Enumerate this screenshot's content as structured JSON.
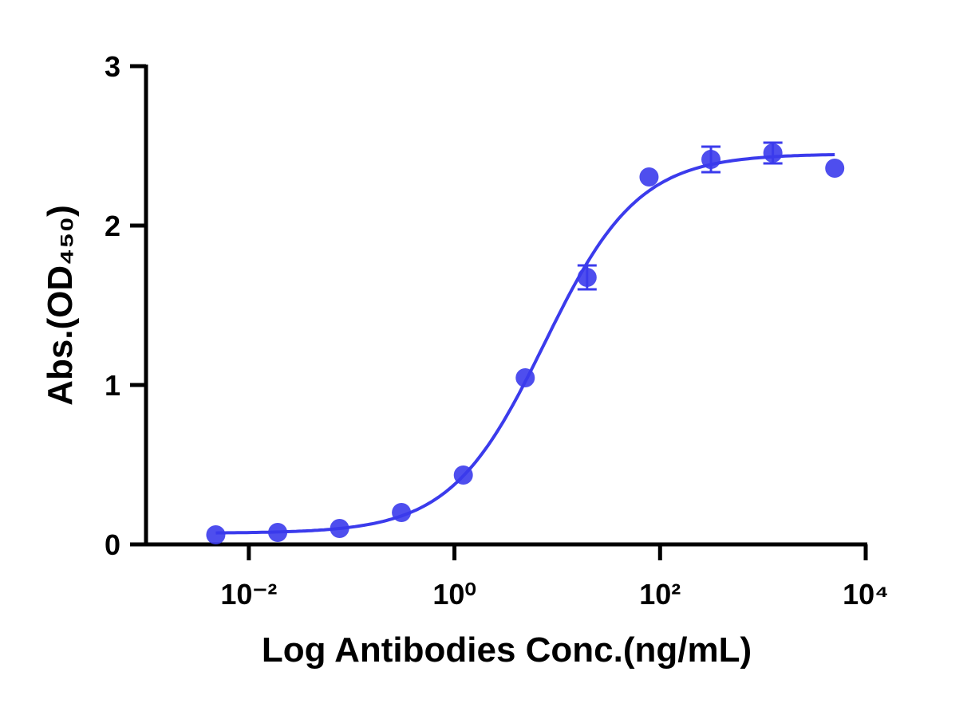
{
  "chart_data": {
    "type": "scatter",
    "x_label": "Log Antibodies Conc.(ng/mL)",
    "y_label": "Abs.(OD₄₅₀)",
    "x_scale": "log",
    "xlim": [
      0.001,
      10000
    ],
    "xticks": [
      {
        "value": 0.01,
        "label": "10⁻²"
      },
      {
        "value": 1,
        "label": "10⁰"
      },
      {
        "value": 100,
        "label": "10²"
      },
      {
        "value": 10000,
        "label": "10⁴"
      }
    ],
    "ylim": [
      0,
      3
    ],
    "yticks": [
      0,
      1,
      2,
      3
    ],
    "color": "#3b3bec",
    "x": [
      0.00477,
      0.0191,
      0.0763,
      0.305,
      1.22,
      4.88,
      19.5,
      78.1,
      312.5,
      1250,
      5000
    ],
    "values": [
      0.06,
      0.075,
      0.1,
      0.2,
      0.435,
      1.045,
      1.675,
      2.305,
      2.415,
      2.455,
      2.36
    ],
    "errors": [
      null,
      null,
      null,
      null,
      null,
      null,
      0.075,
      null,
      0.08,
      0.065,
      null
    ],
    "fit": {
      "bottom": 0.07,
      "top": 2.45,
      "ec50": 7.5,
      "hill": 0.95
    }
  }
}
